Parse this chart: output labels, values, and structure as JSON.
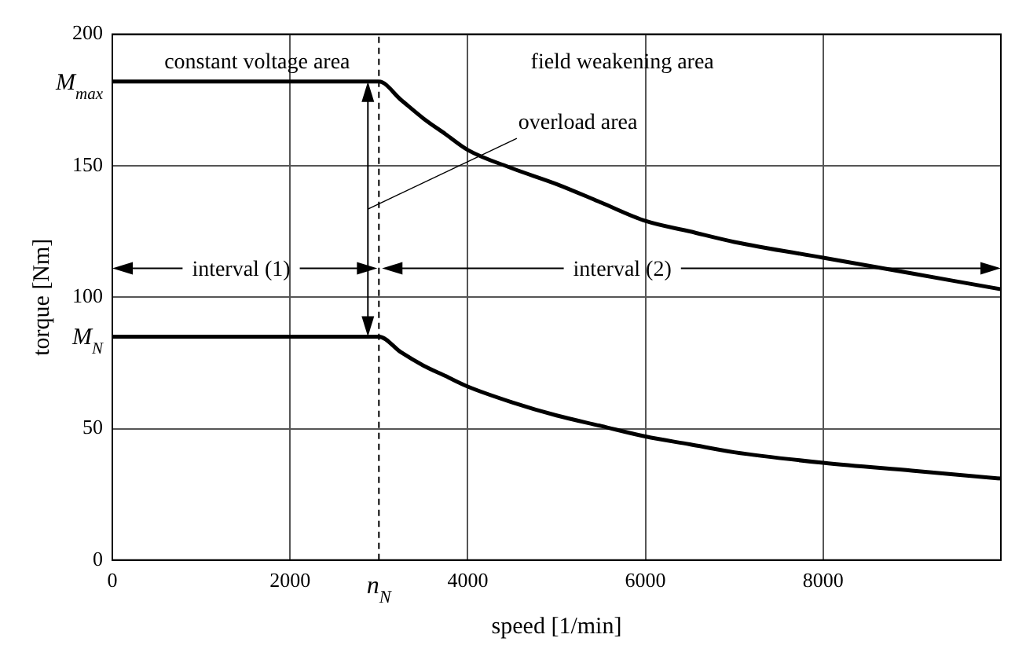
{
  "chart_data": {
    "type": "line",
    "xlabel": "speed [1/min]",
    "ylabel": "torque [Nm]",
    "x": [
      0,
      3000,
      3250,
      3500,
      3750,
      4000,
      4500,
      5000,
      5500,
      6000,
      6500,
      7000,
      8000,
      9000,
      10000
    ],
    "series": [
      {
        "color": "#000000",
        "values": [
          182,
          182,
          175,
          168,
          162,
          156,
          149,
          143,
          136,
          129,
          125,
          121,
          115,
          109,
          103
        ]
      },
      {
        "color": "#000000",
        "values": [
          85,
          85,
          79,
          74,
          70,
          66,
          60,
          55,
          51,
          47,
          44,
          41,
          37,
          34,
          31
        ]
      }
    ],
    "xlim": [
      0,
      10000
    ],
    "xticks": [
      0,
      2000,
      4000,
      6000,
      8000
    ],
    "ylim": [
      0,
      200
    ],
    "yticks": [
      0,
      50,
      100,
      150,
      200,
      {
        "value": 182,
        "label": "M$_{max}$"
      },
      {
        "value": 85,
        "label": "M$_{N}$"
      }
    ],
    "grid": true,
    "legend": false,
    "marker": "none",
    "line_style": "solid",
    "ref_lines": [
      {
        "axis": "x",
        "value": 3000,
        "label": "n$_{N}$",
        "line_style": "dashed",
        "color": "#000000"
      }
    ],
    "annotations": [
      "constant voltage area",
      "field weakening area",
      "overload area",
      "interval (1)",
      "interval (2)"
    ]
  }
}
